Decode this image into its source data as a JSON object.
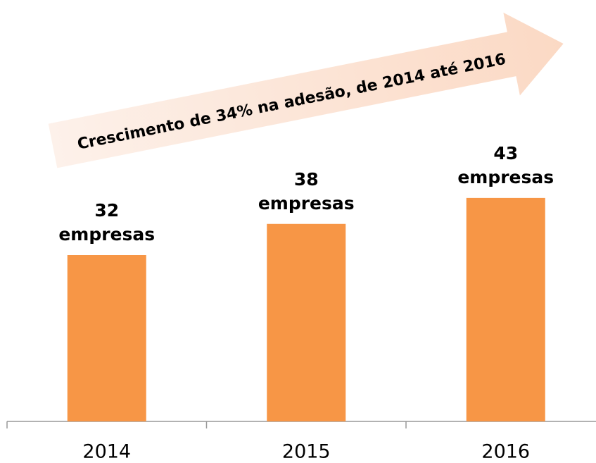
{
  "chart_data": {
    "type": "bar",
    "annotation": "Crescimento de 34% na adesão, de 2014 até 2016",
    "categories": [
      "2014",
      "2015",
      "2016"
    ],
    "values": [
      32,
      38,
      43
    ],
    "value_labels": [
      "32 empresas",
      "38 empresas",
      "43 empresas"
    ],
    "color": "#f79646"
  }
}
